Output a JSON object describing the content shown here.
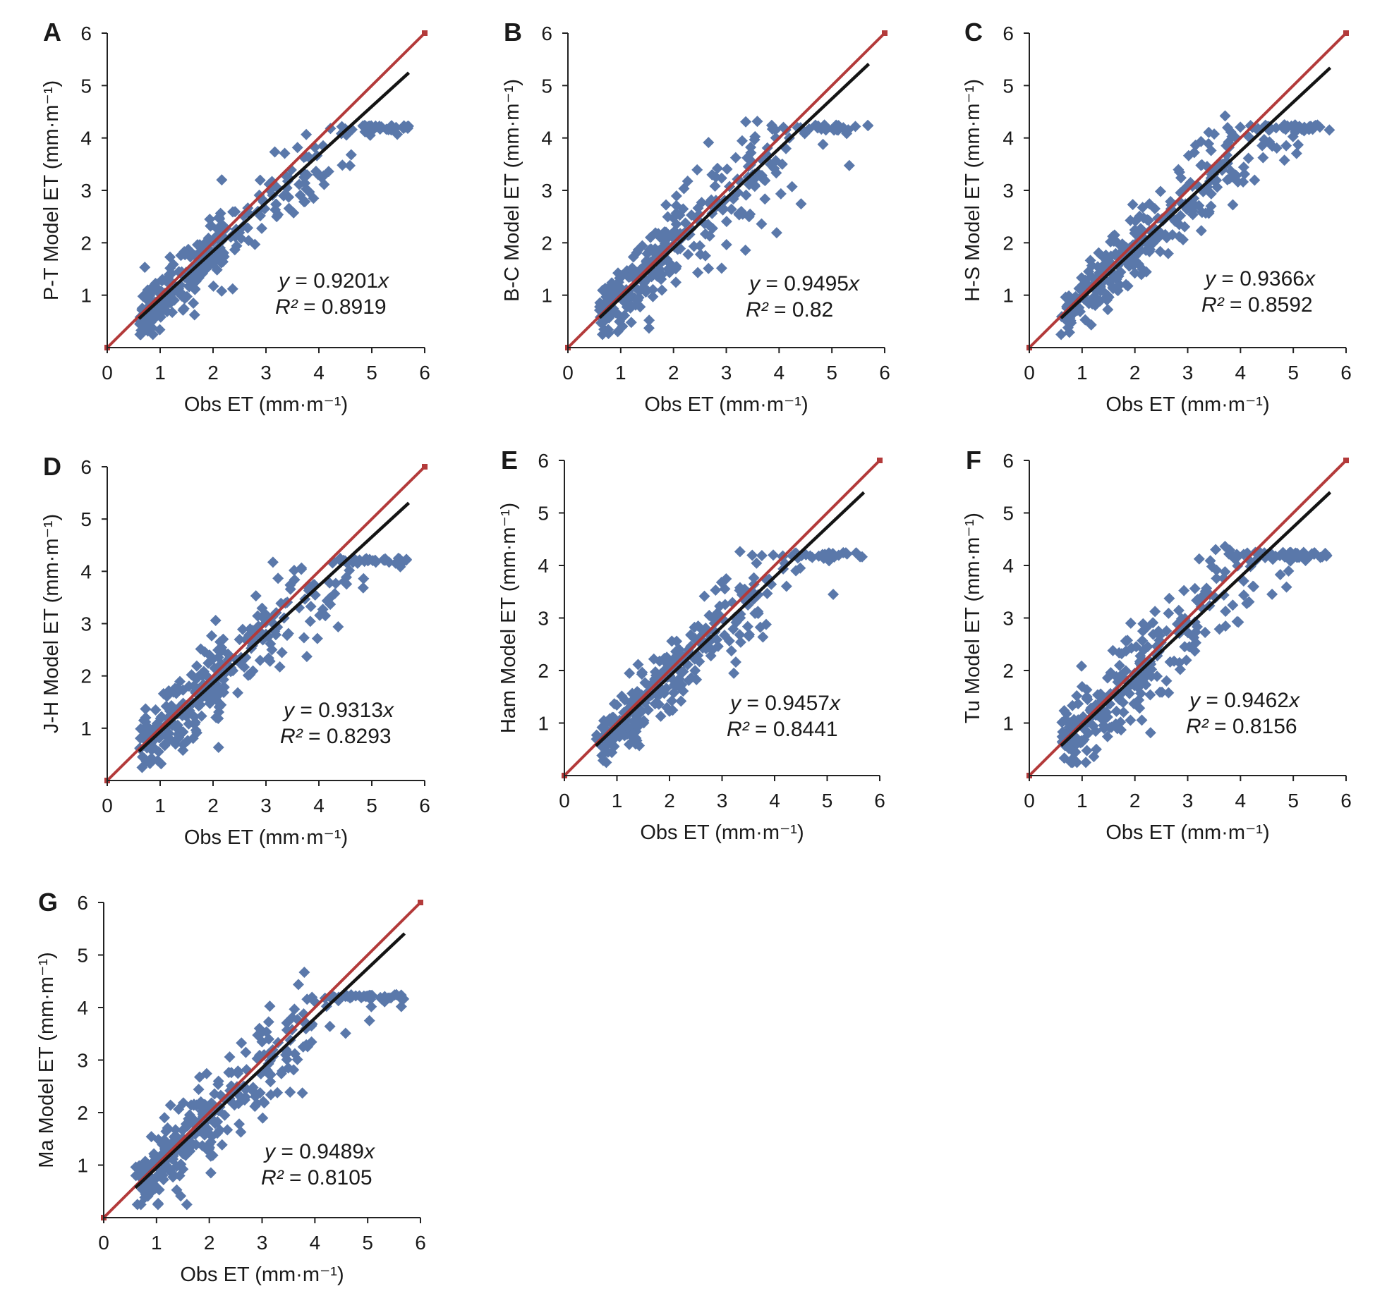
{
  "figure": {
    "colors": {
      "points": "#5a78aa",
      "fit": "#141414",
      "identity": "#b33a3a",
      "axis": "#222222"
    },
    "marker_shape": "diamond-icon"
  },
  "chart_data": [
    {
      "type": "scatter",
      "panel_label": "A",
      "xlabel": "Obs ET (mm·m⁻¹)",
      "ylabel": "P-T Model ET (mm·m⁻¹)",
      "xlim": [
        0,
        6
      ],
      "ylim": [
        0,
        6
      ],
      "xticks": [
        "0",
        "1",
        "2",
        "3",
        "4",
        "5",
        "6"
      ],
      "yticks": [
        "1",
        "2",
        "3",
        "4",
        "5",
        "6"
      ],
      "equation": {
        "y_text": "y",
        "eq_text": " = 0.9201",
        "x_text": "x",
        "r2_label": "R²",
        "r2_text": " = 0.8919"
      },
      "fit": {
        "slope": 0.9201,
        "x_end": 5.7
      },
      "identity": {
        "x_end": 6
      },
      "seed": 11,
      "noise": 0.35
    },
    {
      "type": "scatter",
      "panel_label": "B",
      "xlabel": "Obs ET (mm·m⁻¹)",
      "ylabel": "B-C Model ET (mm·m⁻¹)",
      "xlim": [
        0,
        6
      ],
      "ylim": [
        0,
        6
      ],
      "xticks": [
        "0",
        "1",
        "2",
        "3",
        "4",
        "5",
        "6"
      ],
      "yticks": [
        "1",
        "2",
        "3",
        "4",
        "5",
        "6"
      ],
      "equation": {
        "y_text": "y",
        "eq_text": " = 0.9495",
        "x_text": "x",
        "r2_label": "R²",
        "r2_text": " = 0.82"
      },
      "fit": {
        "slope": 0.9495,
        "x_end": 5.7
      },
      "identity": {
        "x_end": 6
      },
      "seed": 23,
      "noise": 0.45
    },
    {
      "type": "scatter",
      "panel_label": "C",
      "xlabel": "Obs ET (mm·m⁻¹)",
      "ylabel": "H-S Model ET (mm·m⁻¹)",
      "xlim": [
        0,
        6
      ],
      "ylim": [
        0,
        6
      ],
      "xticks": [
        "0",
        "1",
        "2",
        "3",
        "4",
        "5",
        "6"
      ],
      "yticks": [
        "1",
        "2",
        "3",
        "4",
        "5",
        "6"
      ],
      "equation": {
        "y_text": "y",
        "eq_text": " = 0.9366",
        "x_text": "x",
        "r2_label": "R²",
        "r2_text": " = 0.8592"
      },
      "fit": {
        "slope": 0.9366,
        "x_end": 5.7
      },
      "identity": {
        "x_end": 6
      },
      "seed": 37,
      "noise": 0.4
    },
    {
      "type": "scatter",
      "panel_label": "D",
      "xlabel": "Obs ET (mm·m⁻¹)",
      "ylabel": "J-H Model ET (mm·m⁻¹)",
      "xlim": [
        0,
        6
      ],
      "ylim": [
        0,
        6
      ],
      "xticks": [
        "0",
        "1",
        "2",
        "3",
        "4",
        "5",
        "6"
      ],
      "yticks": [
        "1",
        "2",
        "3",
        "4",
        "5",
        "6"
      ],
      "equation": {
        "y_text": "y",
        "eq_text": " = 0.9313",
        "x_text": "x",
        "r2_label": "R²",
        "r2_text": " = 0.8293"
      },
      "fit": {
        "slope": 0.9313,
        "x_end": 5.7
      },
      "identity": {
        "x_end": 6
      },
      "seed": 41,
      "noise": 0.45
    },
    {
      "type": "scatter",
      "panel_label": "E",
      "xlabel": "Obs ET (mm·m⁻¹)",
      "ylabel": "Ham Model ET (mm·m⁻¹)",
      "xlim": [
        0,
        6
      ],
      "ylim": [
        0,
        6
      ],
      "xticks": [
        "0",
        "1",
        "2",
        "3",
        "4",
        "5",
        "6"
      ],
      "yticks": [
        "1",
        "2",
        "3",
        "4",
        "5",
        "6"
      ],
      "equation": {
        "y_text": "y",
        "eq_text": " = 0.9457",
        "x_text": "x",
        "r2_label": "R²",
        "r2_text": " = 0.8441"
      },
      "fit": {
        "slope": 0.9457,
        "x_end": 5.7
      },
      "identity": {
        "x_end": 6
      },
      "seed": 53,
      "noise": 0.4
    },
    {
      "type": "scatter",
      "panel_label": "F",
      "xlabel": "Obs ET (mm·m⁻¹)",
      "ylabel": "Tu Model ET (mm·m⁻¹)",
      "xlim": [
        0,
        6
      ],
      "ylim": [
        0,
        6
      ],
      "xticks": [
        "0",
        "1",
        "2",
        "3",
        "4",
        "5",
        "6"
      ],
      "yticks": [
        "1",
        "2",
        "3",
        "4",
        "5",
        "6"
      ],
      "equation": {
        "y_text": "y",
        "eq_text": " = 0.9462",
        "x_text": "x",
        "r2_label": "R²",
        "r2_text": " = 0.8156"
      },
      "fit": {
        "slope": 0.9462,
        "x_end": 5.7
      },
      "identity": {
        "x_end": 6
      },
      "seed": 67,
      "noise": 0.45
    },
    {
      "type": "scatter",
      "panel_label": "G",
      "xlabel": "Obs ET (mm·m⁻¹)",
      "ylabel": "Ma Model ET (mm·m⁻¹)",
      "xlim": [
        0,
        6
      ],
      "ylim": [
        0,
        6
      ],
      "xticks": [
        "0",
        "1",
        "2",
        "3",
        "4",
        "5",
        "6"
      ],
      "yticks": [
        "1",
        "2",
        "3",
        "4",
        "5",
        "6"
      ],
      "equation": {
        "y_text": "y",
        "eq_text": " = 0.9489",
        "x_text": "x",
        "r2_label": "R²",
        "r2_text": " = 0.8105"
      },
      "fit": {
        "slope": 0.9489,
        "x_end": 5.7
      },
      "identity": {
        "x_end": 6
      },
      "seed": 79,
      "noise": 0.45
    }
  ]
}
